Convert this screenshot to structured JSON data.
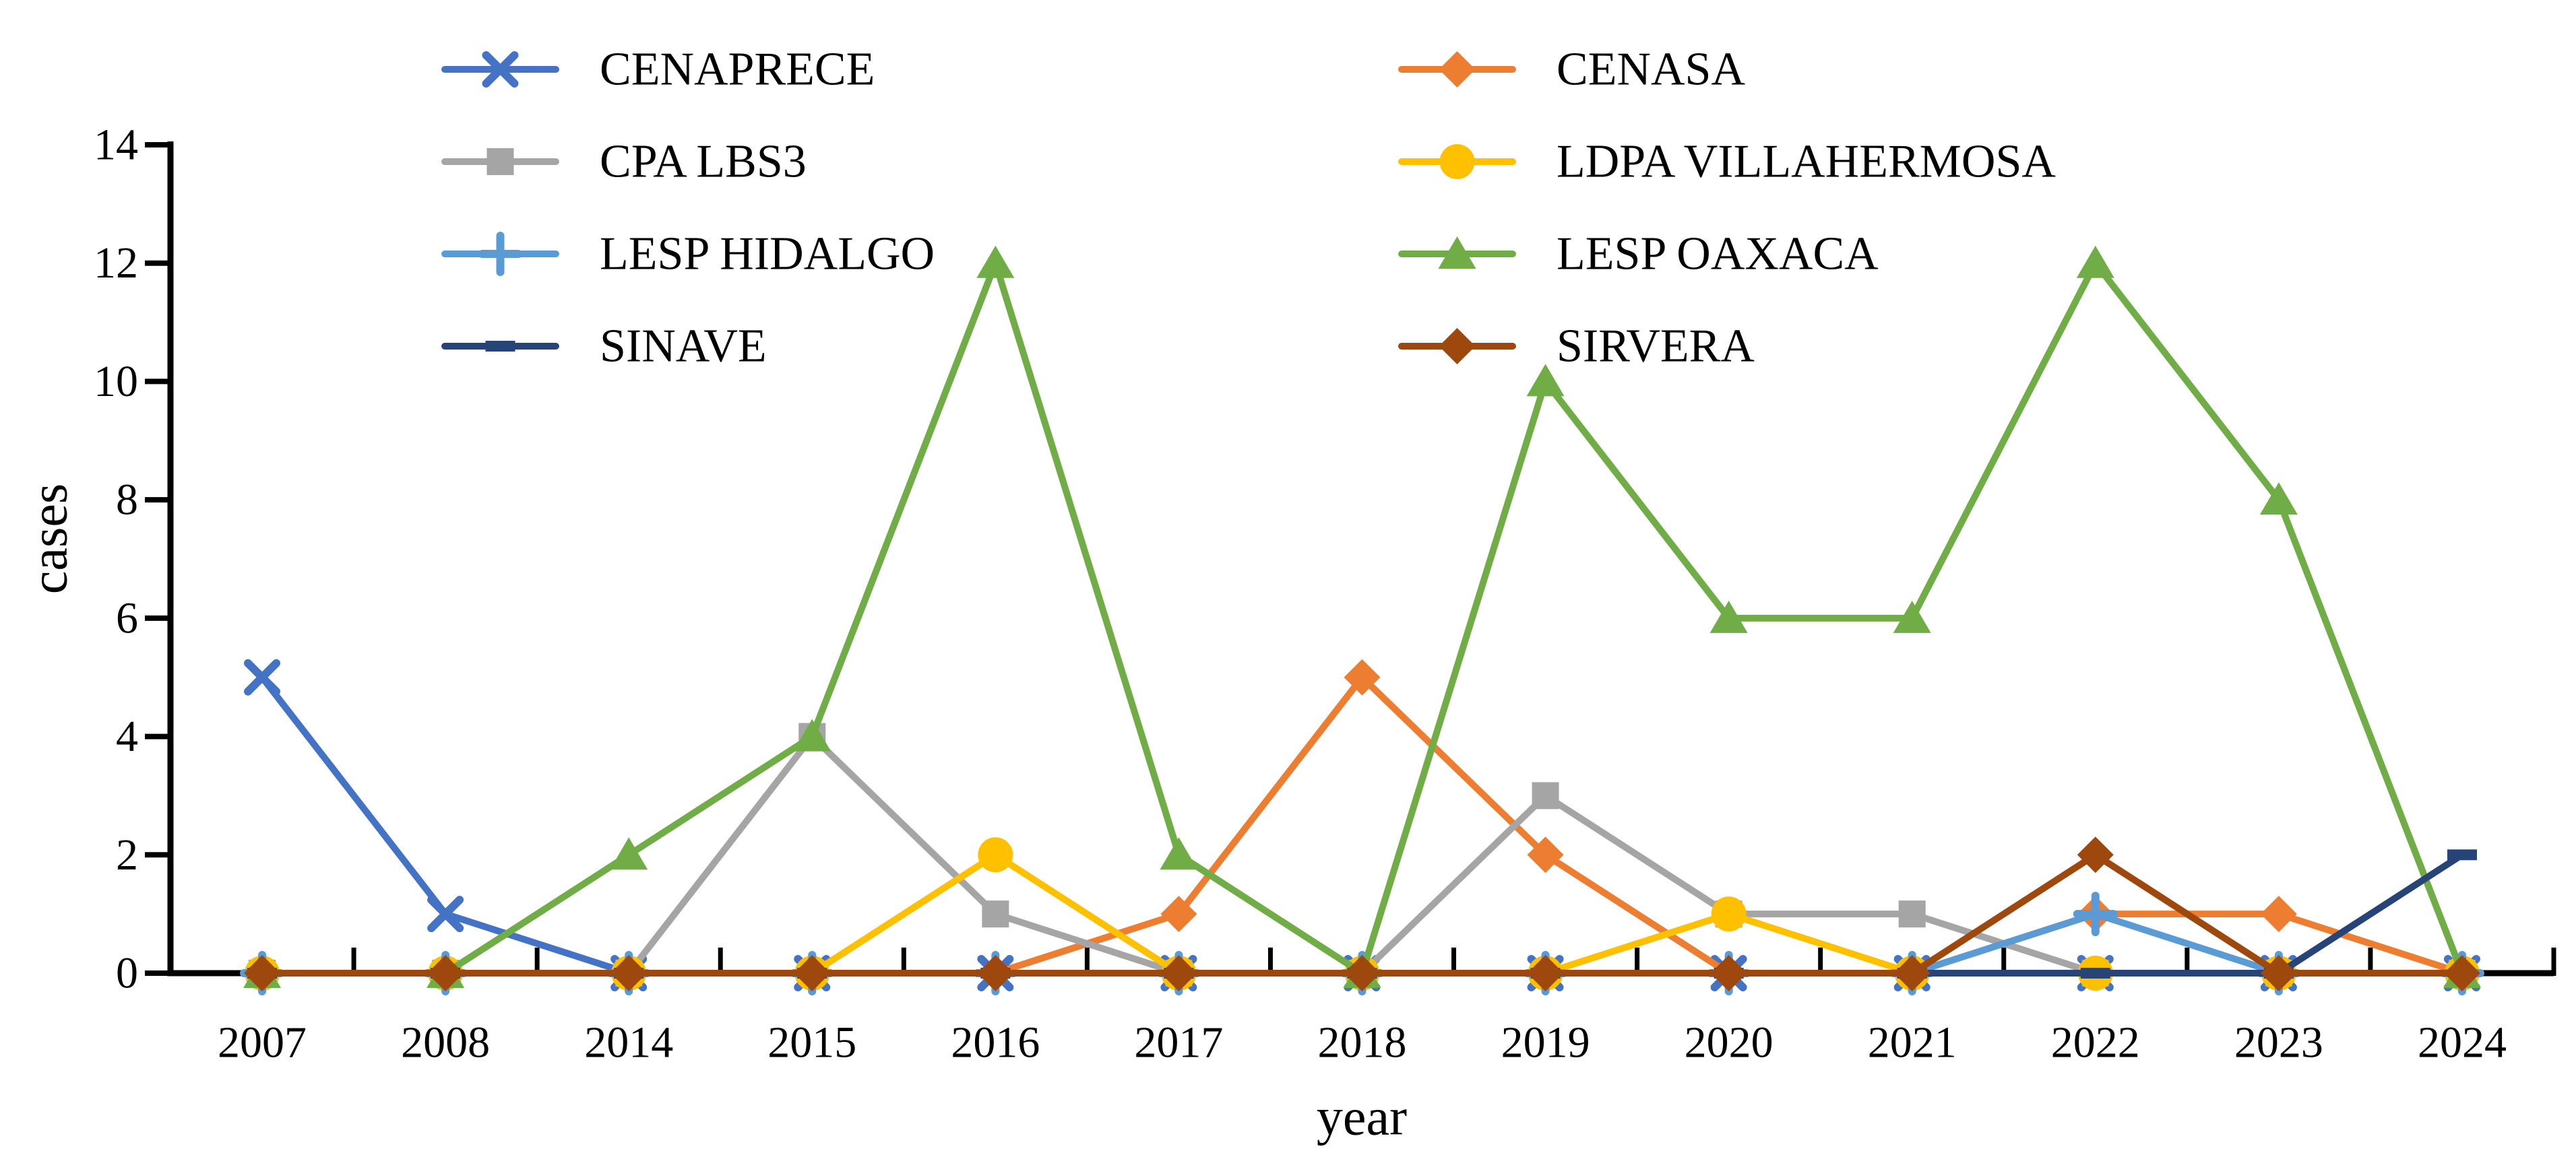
{
  "figure": {
    "background": "#FFFFFF",
    "axis_color": "#000000",
    "text_color": "#000000"
  },
  "chart_data": {
    "type": "line",
    "title": "",
    "xlabel": "year",
    "ylabel": "cases",
    "categories": [
      "2007",
      "2008",
      "2014",
      "2015",
      "2016",
      "2017",
      "2018",
      "2019",
      "2020",
      "2021",
      "2022",
      "2023",
      "2024"
    ],
    "ylim": [
      0,
      14
    ],
    "yticks": [
      0,
      2,
      4,
      6,
      8,
      10,
      12,
      14
    ],
    "grid": false,
    "legend_position": "top-two-columns",
    "series": [
      {
        "name": "CENAPRECE",
        "color": "#4472C4",
        "marker": "x",
        "values": [
          5,
          1,
          0,
          0,
          0,
          0,
          0,
          0,
          0,
          0,
          0,
          0,
          0
        ]
      },
      {
        "name": "CENASA",
        "color": "#ED7D31",
        "marker": "diamond",
        "values": [
          0,
          0,
          0,
          0,
          0,
          1,
          5,
          2,
          0,
          0,
          1,
          1,
          0
        ]
      },
      {
        "name": "CPA LBS3",
        "color": "#A5A5A5",
        "marker": "square",
        "values": [
          0,
          0,
          0,
          4,
          1,
          0,
          0,
          3,
          1,
          1,
          0,
          0,
          0
        ]
      },
      {
        "name": "LDPA VILLAHERMOSA",
        "color": "#FFC000",
        "marker": "circle",
        "values": [
          0,
          0,
          0,
          0,
          2,
          0,
          0,
          0,
          1,
          0,
          0,
          0,
          0
        ]
      },
      {
        "name": "LESP HIDALGO",
        "color": "#5B9BD5",
        "marker": "plus",
        "values": [
          0,
          0,
          0,
          0,
          0,
          0,
          0,
          0,
          0,
          0,
          1,
          0,
          0
        ]
      },
      {
        "name": "LESP OAXACA",
        "color": "#70AD47",
        "marker": "triangle",
        "values": [
          0,
          0,
          2,
          4,
          12,
          2,
          0,
          10,
          6,
          6,
          12,
          8,
          0
        ]
      },
      {
        "name": "SINAVE",
        "color": "#264478",
        "marker": "dash",
        "values": [
          0,
          0,
          0,
          0,
          0,
          0,
          0,
          0,
          0,
          0,
          0,
          0,
          2
        ]
      },
      {
        "name": "SIRVERA",
        "color": "#9E480E",
        "marker": "diamond",
        "values": [
          0,
          0,
          0,
          0,
          0,
          0,
          0,
          0,
          0,
          0,
          2,
          0,
          0
        ]
      }
    ]
  }
}
